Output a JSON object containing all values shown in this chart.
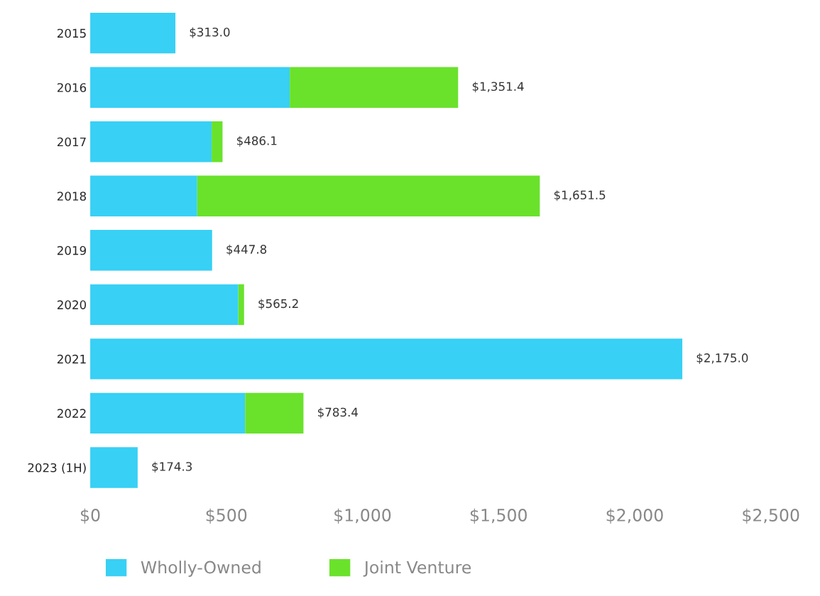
{
  "chart_data": {
    "type": "bar",
    "orientation": "horizontal",
    "stacked": true,
    "categories": [
      "2015",
      "2016",
      "2017",
      "2018",
      "2019",
      "2020",
      "2021",
      "2022",
      "2023 (1H)"
    ],
    "series": [
      {
        "name": "Wholly-Owned",
        "color": "#38d0f5",
        "values": [
          313.0,
          733,
          446,
          393,
          447.8,
          544,
          2175.0,
          569,
          174.3
        ]
      },
      {
        "name": "Joint Venture",
        "color": "#6ae22c",
        "values": [
          null,
          618.4,
          40.1,
          1258.5,
          null,
          21.2,
          null,
          214.4,
          null
        ]
      }
    ],
    "totals": [
      "$313.0",
      "$1,351.4",
      "$486.1",
      "$1,651.5",
      "$447.8",
      "$565.2",
      "$2,175.0",
      "$783.4",
      "$174.3"
    ],
    "xlim": [
      0,
      2500
    ],
    "xticks": [
      {
        "value": 0,
        "label": "$0"
      },
      {
        "value": 500,
        "label": "$500"
      },
      {
        "value": 1000,
        "label": "$1,000"
      },
      {
        "value": 1500,
        "label": "$1,500"
      },
      {
        "value": 2000,
        "label": "$2,000"
      },
      {
        "value": 2500,
        "label": "$2,500"
      }
    ],
    "grid": false,
    "legend": "bottom left"
  }
}
